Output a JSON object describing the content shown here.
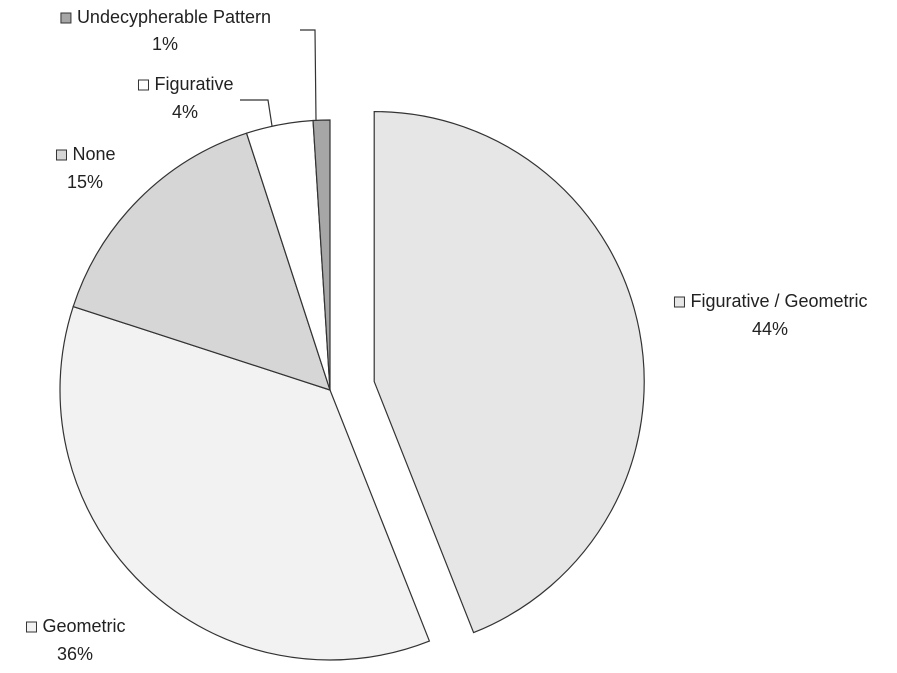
{
  "chart_data": {
    "type": "pie",
    "categories": [
      "Figurative / Geometric",
      "Geometric",
      "None",
      "Figurative",
      "Undecypherable Pattern"
    ],
    "values": [
      44,
      36,
      15,
      4,
      1
    ],
    "value_labels": [
      "44%",
      "36%",
      "15%",
      "4%",
      "1%"
    ],
    "colors": [
      "#e6e6e6",
      "#f2f2f2",
      "#d6d6d6",
      "#ffffff",
      "#a6a6a6"
    ],
    "exploded": [
      true,
      false,
      false,
      false,
      false
    ]
  }
}
